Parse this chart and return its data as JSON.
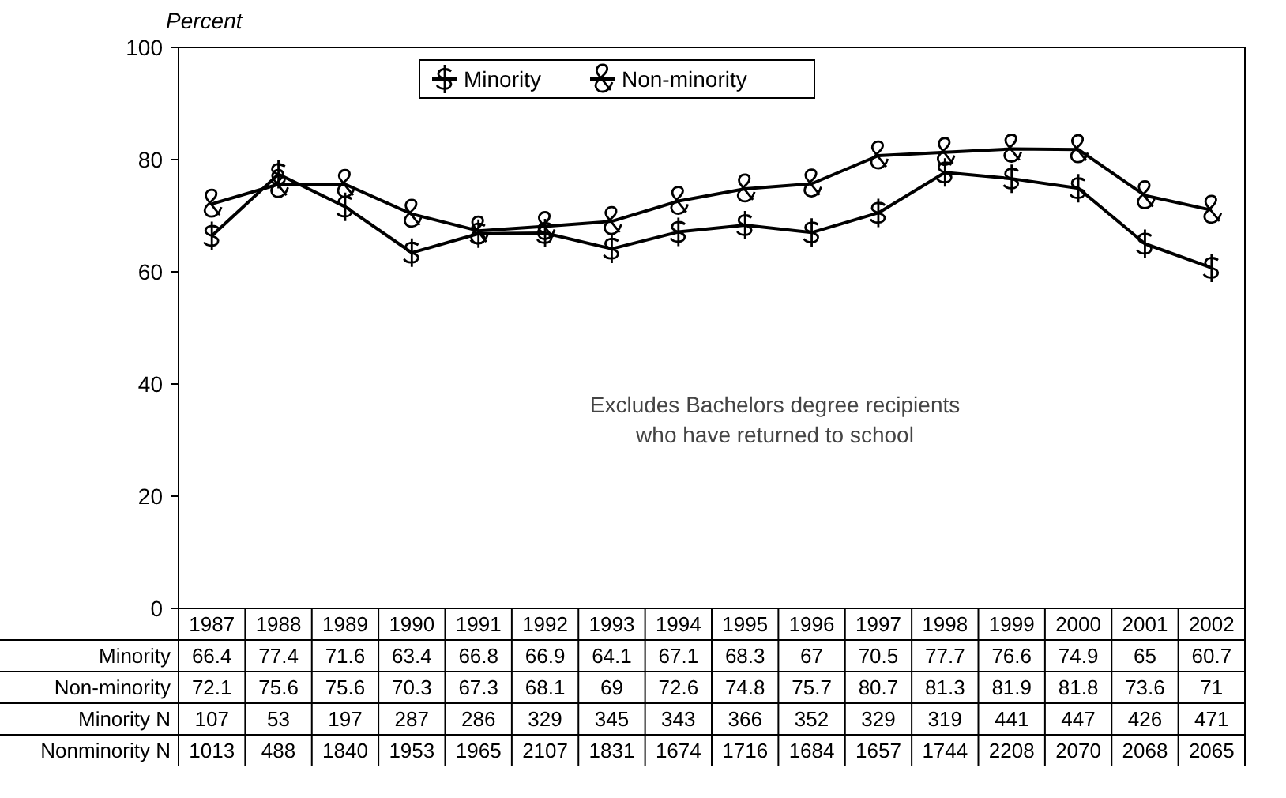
{
  "chart_data": [
    {
      "type": "line",
      "ylabel": "Percent",
      "categories": [
        "1987",
        "1988",
        "1989",
        "1990",
        "1991",
        "1992",
        "1993",
        "1994",
        "1995",
        "1996",
        "1997",
        "1998",
        "1999",
        "2000",
        "2001",
        "2002"
      ],
      "series": [
        {
          "name": "Minority",
          "color": "#000000",
          "marker": "cross",
          "values": [
            66.4,
            77.4,
            71.6,
            63.4,
            66.8,
            66.9,
            64.1,
            67.1,
            68.3,
            67,
            70.5,
            77.7,
            76.6,
            74.9,
            65,
            60.7
          ]
        },
        {
          "name": "Non-minority",
          "color": "#000000",
          "marker": "cross",
          "values": [
            72.1,
            75.6,
            75.6,
            70.3,
            67.3,
            68.1,
            69,
            72.6,
            74.8,
            75.7,
            80.7,
            81.3,
            81.9,
            81.8,
            73.6,
            71
          ]
        }
      ],
      "ylim": [
        0,
        100
      ],
      "yticks": [
        0,
        20,
        40,
        60,
        80,
        100
      ],
      "grid": false,
      "legend": "top",
      "line_style": "solid",
      "data_labels": true,
      "annotations": [
        "Excludes Bachelors degree recipients\nwho have returned to school"
      ]
    },
    {
      "type": "other",
      "annotations": [
        "Minority N",
        "107",
        "53",
        "197",
        "287",
        "286",
        "329",
        "345",
        "343",
        "366",
        "352",
        "329",
        "319",
        "441",
        "447",
        "426",
        "471",
        "Nonminority N",
        "1013",
        "488",
        "1840",
        "1953",
        "1965",
        "2107",
        "1831",
        "1674",
        "1716",
        "1684",
        "1657",
        "1744",
        "2208",
        "2070",
        "2068",
        "2065"
      ]
    }
  ]
}
